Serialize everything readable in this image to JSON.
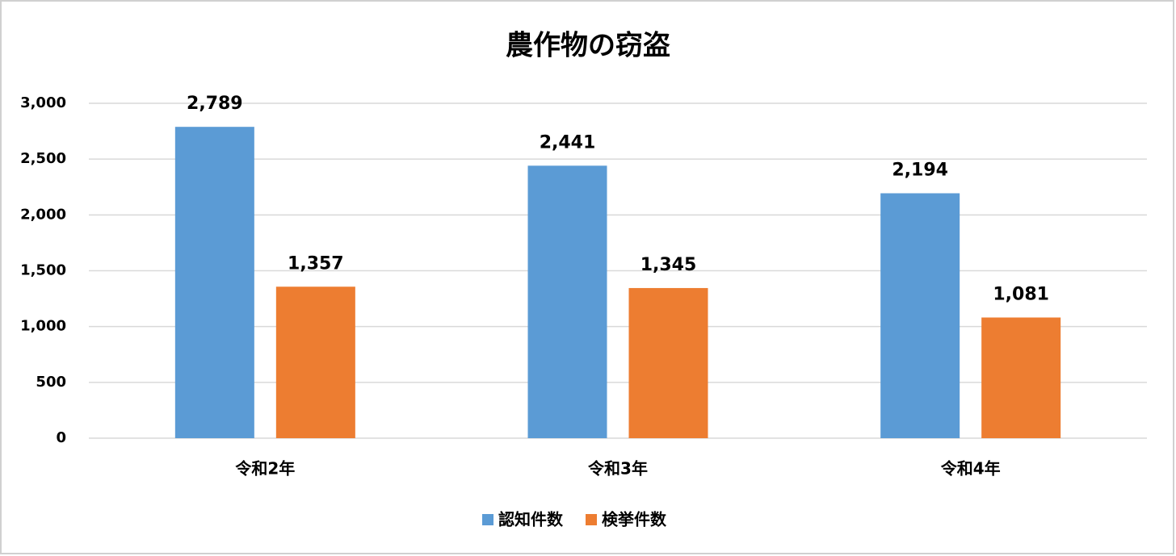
{
  "chart_data": {
    "type": "bar",
    "title": "農作物の窃盗",
    "categories": [
      "令和2年",
      "令和3年",
      "令和4年"
    ],
    "series": [
      {
        "name": "認知件数",
        "color": "#5b9bd5",
        "values": [
          2789,
          2441,
          2194
        ],
        "value_labels": [
          "2,789",
          "2,441",
          "2,194"
        ]
      },
      {
        "name": "検挙件数",
        "color": "#ed7d31",
        "values": [
          1357,
          1345,
          1081
        ],
        "value_labels": [
          "1,357",
          "1,345",
          "1,081"
        ]
      }
    ],
    "ylim": [
      0,
      3000
    ],
    "yticks": [
      0,
      500,
      {
        "value": 1000,
        "label": "1,000"
      },
      {
        "value": 1500,
        "label": "1,500"
      },
      {
        "value": 2000,
        "label": "2,000"
      },
      {
        "value": 2500,
        "label": "2,500"
      },
      {
        "value": 3000,
        "label": "3,000"
      }
    ],
    "grid": true,
    "legend": "bottom"
  }
}
